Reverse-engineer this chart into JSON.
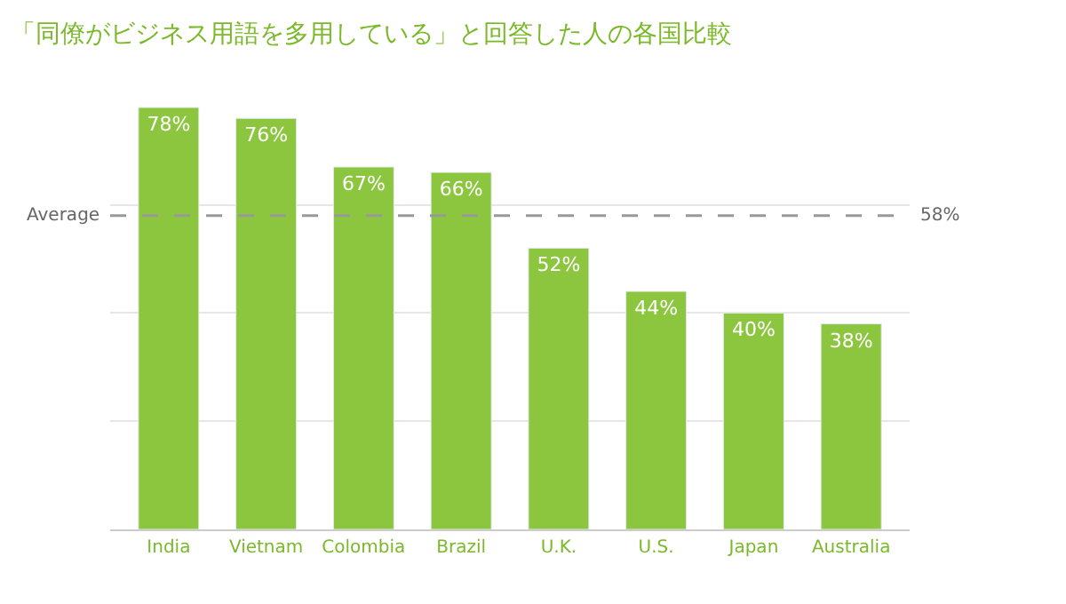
{
  "chart_data": {
    "type": "bar",
    "title": "「同僚がビジネス用語を多用している」と回答した人の各国比較",
    "categories": [
      "India",
      "Vietnam",
      "Colombia",
      "Brazil",
      "U.K.",
      "U.S.",
      "Japan",
      "Australia"
    ],
    "values": [
      78,
      76,
      67,
      66,
      52,
      44,
      40,
      38
    ],
    "color": "#8cc63f",
    "value_labels": [
      "78%",
      "76%",
      "67%",
      "66%",
      "52%",
      "44%",
      "40%",
      "38%"
    ],
    "yticks": [
      {
        "value": 0,
        "label": null
      },
      {
        "value": 20,
        "label": null
      },
      {
        "value": 40,
        "label": null
      },
      {
        "value": 60,
        "label": null
      }
    ],
    "tick_labels": "x",
    "grid": "y",
    "ref_lines": [
      {
        "axis": "y",
        "value": 58,
        "label": "Average",
        "color": "#999999",
        "line_style": "dashed"
      }
    ],
    "annotations": [
      "58%"
    ]
  }
}
